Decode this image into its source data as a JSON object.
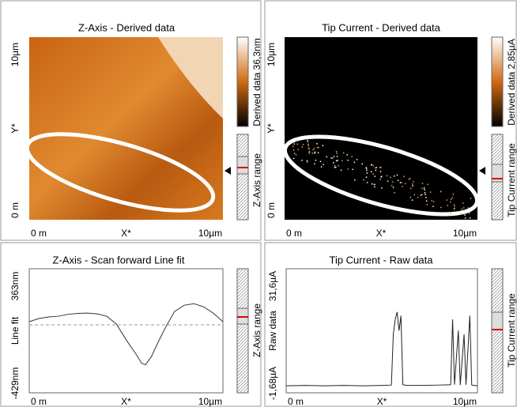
{
  "panels": [
    {
      "title": "Z-Axis - Derived data",
      "y_ticks": [
        "0 m",
        "Y*",
        "10µm"
      ],
      "x_ticks": [
        "0 m",
        "X*",
        "10µm"
      ],
      "colorbar_label": "Derived data 36,3nm",
      "range_label": "Z-Axis range"
    },
    {
      "title": "Tip Current - Derived data",
      "y_ticks": [
        "0 m",
        "Y*",
        "10µm"
      ],
      "x_ticks": [
        "0 m",
        "X*",
        "10µm"
      ],
      "colorbar_label": "Derived data 2,85µA",
      "range_label": "Tip Current range"
    },
    {
      "title": "Z-Axis - Scan forward   Line fit",
      "y_ticks": [
        "-429nm",
        "Line fit",
        "363nm"
      ],
      "x_ticks": [
        "0 m",
        "X*",
        "10µm"
      ],
      "range_label": "Z-Axis range",
      "chart_data": {
        "type": "line",
        "xlim": [
          0,
          10
        ],
        "ylim": [
          -429,
          363
        ],
        "color": "#333333",
        "x": [
          0,
          0.5,
          1,
          1.5,
          2,
          2.5,
          3,
          3.5,
          4,
          4.5,
          5,
          5.5,
          5.8,
          6,
          6.3,
          6.6,
          7,
          7.5,
          8,
          8.5,
          9,
          9.5,
          10
        ],
        "values": [
          25,
          45,
          55,
          60,
          72,
          78,
          80,
          75,
          60,
          10,
          -90,
          -180,
          -240,
          -250,
          -200,
          -120,
          -20,
          90,
          130,
          140,
          120,
          80,
          25
        ]
      }
    },
    {
      "title": "Tip Current - Raw data",
      "y_ticks": [
        "-1,68µA",
        "Raw data",
        "31,6µA"
      ],
      "x_ticks": [
        "0 m",
        "X*",
        "10µm"
      ],
      "range_label": "Tip Current range",
      "chart_data": {
        "type": "line",
        "xlim": [
          0,
          10
        ],
        "ylim": [
          -1.68,
          31.6
        ],
        "color": "#222222",
        "x": [
          0,
          1,
          2,
          3,
          4,
          5,
          5.5,
          5.6,
          5.7,
          5.8,
          5.9,
          6.0,
          6.1,
          6.3,
          7,
          8,
          8.6,
          8.7,
          8.8,
          9.0,
          9.1,
          9.3,
          9.4,
          9.6,
          9.7,
          9.8,
          10
        ],
        "values": [
          0.2,
          0.3,
          0.2,
          0.3,
          0.2,
          0.3,
          0.4,
          14,
          18,
          20,
          15,
          19,
          0.5,
          0.3,
          0.3,
          0.4,
          0.5,
          18,
          0.5,
          15,
          0.4,
          14,
          0.5,
          19,
          0.4,
          0.3,
          0.2
        ]
      }
    }
  ]
}
